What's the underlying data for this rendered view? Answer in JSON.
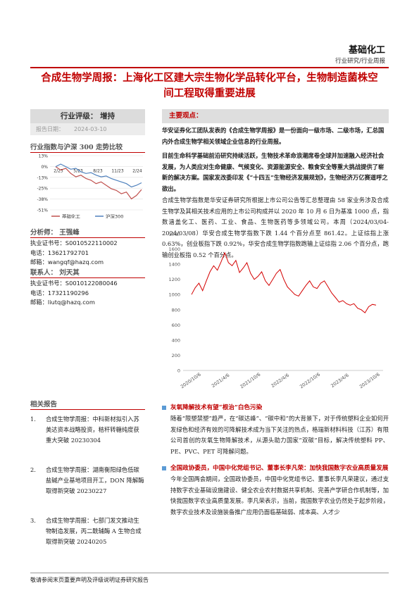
{
  "header": {
    "sector": "基础化工",
    "sub": "行业研究/行业周报"
  },
  "title": "合成生物学周报：上海化工区建大宗生物化学品转化平台，生物制造菌株空间工程取得重要进展",
  "rating": {
    "label": "行业评级： 增持",
    "date_label": "报告日期：",
    "date": "2024-03-10"
  },
  "index_chart": {
    "heading": "行业指数与沪深 300 走势比较",
    "legend": [
      "基础化工",
      "沪深300"
    ],
    "colors": {
      "sector": "#c0504d",
      "hs300": "#4f81bd"
    }
  },
  "chart_data": [
    {
      "type": "line",
      "title": "",
      "x_labels": [
        "2/23",
        "5/23",
        "8/23",
        "11/23",
        "2/24"
      ],
      "y_ticks": [
        "13%",
        "0%",
        "-13%",
        "-25%",
        "-38%",
        "-51%"
      ],
      "ylim": [
        -51,
        13
      ],
      "series": [
        {
          "name": "基础化工",
          "values": [
            0,
            -4,
            -2,
            -8,
            -12,
            -10,
            -14,
            -16,
            -20,
            -18,
            -22,
            -26,
            -28,
            -32,
            -30,
            -38,
            -34,
            -27
          ]
        },
        {
          "name": "沪深300",
          "values": [
            0,
            3,
            0,
            -3,
            -2,
            -6,
            -8,
            -7,
            -10,
            -12,
            -11,
            -14,
            -16,
            -18,
            -20,
            -24,
            -22,
            -19
          ]
        }
      ]
    },
    {
      "type": "line",
      "title": "",
      "x_labels": [
        "2020/10/6",
        "2021/4/6",
        "2021/10/6",
        "2022/4/6",
        "2022/10/6",
        "2023/4/6",
        "2023/10/6"
      ],
      "y_ticks": [
        "0",
        "200",
        "400",
        "600",
        "800",
        "1000",
        "1200",
        "1400",
        "1600",
        "1800"
      ],
      "ylim": [
        0,
        1800
      ],
      "series": [
        {
          "name": "合成生物学指数",
          "values": [
            1000,
            1090,
            1150,
            1050,
            1180,
            1300,
            1380,
            1320,
            1430,
            1550,
            1420,
            1380,
            1450,
            1290,
            1350,
            1420,
            1280,
            1200,
            1240,
            1300,
            1180,
            1120,
            1200,
            1280,
            1330,
            1200,
            1100,
            1050,
            1000,
            980,
            1050,
            1120,
            1180,
            1100,
            1080,
            1150,
            1180,
            1100,
            1020,
            960,
            900,
            920,
            880,
            860,
            880,
            820,
            800,
            760,
            840,
            870,
            861
          ]
        }
      ]
    }
  ],
  "analyst": {
    "heading": "分析师： 王强峰",
    "license_label": "执业证书号：",
    "license": "S0010522110002",
    "phone_label": "电话：",
    "phone": "13621792701",
    "email_label": "邮箱：",
    "email": "wangqf@hazq.com"
  },
  "contact": {
    "heading": "联系人： 刘天其",
    "license_label": "执业证书号：",
    "license": "S0010122080046",
    "phone_label": "电话：",
    "phone": "17321190296",
    "email_label": "邮箱：",
    "email": "liutq@hazq.com"
  },
  "related": {
    "heading": "相关报告",
    "items": [
      {
        "num": "1.",
        "text": "合成生物学周报：中科新材拟引入苏美达资本战略投资，秸秆转糖纯度获重大突破 20230304"
      },
      {
        "num": "2.",
        "text": "合成生物学周报：湖南衡阳绿色低碳盐碱产业基地项目开工，DON 降解酶取得新突破 20230227"
      },
      {
        "num": "3.",
        "text": "合成生物学周报：七部门发文推动生物制造发展，丙二酰辅酶 A 生物合成取得新突破 20240205"
      }
    ]
  },
  "keypoints": {
    "label": "主要观点：",
    "p1": "华安证券化工团队发表的《合成生物学周报》是一份面向一级市场、二级市场，汇总国内外合成生物学相关领域企业信息的行业周报。",
    "p2": "目前生命科学基础前沿研究持续活跃，生物技术革命浪潮席卷全球并加速融入经济社会发展，为人类应对生命健康、气候变化、资源能源安全、粮食安全等重大挑战提供了崭新的解决方案。国家发改委印发《“十四五”生物经济发展规划》，生物经济万亿赛道呼之欲出。",
    "p3": "合成生物学指数是华安证券研究所根据上市公司公告等汇总整理由 58 家业务涉及合成生物学及其相关技术应用的上市公司构成并以 2020 年 10 月 6 日为基准 1000 点，指数涵盖化工、医药、工业、食品、生物医药等多领域公司。本周（2024/03/04-2024/03/08）华安合成生物学指数下跌 1.44 个百分点至 861.42。上证综指上涨 0.63%，创业板指下跌 0.92%，华安合成生物学指数跑输上证综指 2.06 个百分点，跑输创业板指 0.52 个百分点。"
  },
  "news": [
    {
      "title": "灰氧降解技术有望“根治”白色污染",
      "body": "随着“限塑禁塑”趋严，在“碳达峰”、“碳中和”的大背景下，对于传统塑料企业如何开发绿色和经济有效的可降解技术成为当下关注的热点，格瑞新材料科技（江苏）有限公司首创的灰氧生物降解技术，从源头助力国家“双碳”目标，解决传统塑料 PP、PE、PVC、PET 可降解问题。"
    },
    {
      "title": "全国政协委员，中国中化党组书记、董事长李凡荣：加快我国数字农业高质量发展",
      "body": "今年全国两会期间，全国政协委员，中国中化党组书记、董事长李凡荣建议，通过支持数字农业基础设施建设、健全农业农村数据共享机制、完善产学研合作机制等，加快我国数字农业高质量发展。李凡荣表示，当前，我国数字农业仍然处于起步阶段，数字农业技术及设施装备推广应用仍面临基础弱、成本高、人才少"
    }
  ],
  "footer": "敬请参阅末页重要声明及评级说明证券研究报告"
}
